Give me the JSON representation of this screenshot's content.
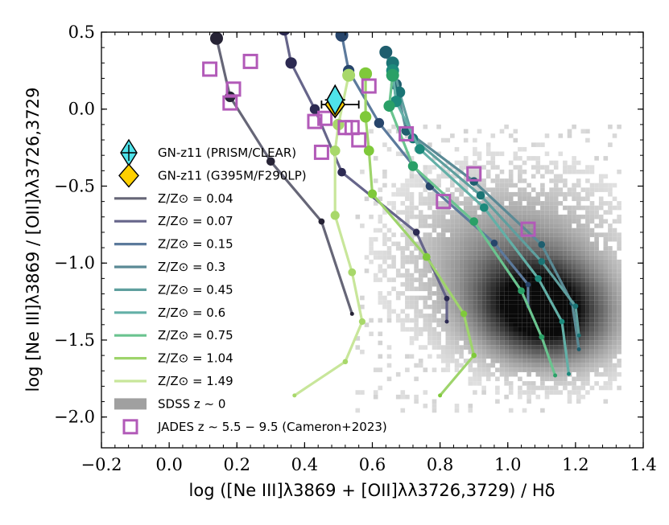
{
  "chart_data": {
    "type": "scatter",
    "xlabel": "log ([Ne III]λ3869 + [OII]λλ3726,3729) / Hδ",
    "ylabel": "log [Ne III]λ3869 / [OII]λλ3726,3729",
    "xlim": [
      -0.2,
      1.4
    ],
    "ylim": [
      -2.2,
      0.5
    ],
    "xticks": [
      -0.2,
      0.0,
      0.2,
      0.4,
      0.6,
      0.8,
      1.0,
      1.2,
      1.4
    ],
    "xtick_labels": [
      "−0.2",
      "0.0",
      "0.2",
      "0.4",
      "0.6",
      "0.8",
      "1.0",
      "1.2",
      "1.4"
    ],
    "yticks": [
      0.5,
      0.0,
      -0.5,
      -1.0,
      -1.5,
      -2.0
    ],
    "ytick_labels": [
      "0.5",
      "0.0",
      "−0.5",
      "−1.0",
      "−1.5",
      "−2.0"
    ],
    "legend_position": "left",
    "gnz11": [
      {
        "name": "GN-z11 (PRISM/CLEAR)",
        "x": 0.49,
        "y": 0.06,
        "xerr": 0.03,
        "yerr": 0.05,
        "marker": "thin_diamond",
        "color": "#4fe3ea"
      },
      {
        "name": "GN-z11 (G395M/F290LP)",
        "x": 0.49,
        "y": 0.03,
        "xerr_low": 0.04,
        "xerr_high": 0.07,
        "marker": "diamond",
        "color": "#ffd000"
      }
    ],
    "model_tracks": [
      {
        "label": "Z/Z⊙ = 0.04",
        "color": "#262335",
        "line_color": "#666677",
        "points": [
          [
            0.14,
            0.46
          ],
          [
            0.18,
            0.08
          ],
          [
            0.3,
            -0.34
          ],
          [
            0.45,
            -0.73
          ],
          [
            0.54,
            -1.33
          ]
        ]
      },
      {
        "label": "Z/Z⊙ = 0.07",
        "color": "#2c2a52",
        "line_color": "#66658a",
        "points": [
          [
            0.34,
            0.52
          ],
          [
            0.36,
            0.3
          ],
          [
            0.43,
            0.0
          ],
          [
            0.51,
            -0.41
          ],
          [
            0.73,
            -0.8
          ],
          [
            0.82,
            -1.23
          ],
          [
            0.82,
            -1.38
          ]
        ]
      },
      {
        "label": "Z/Z⊙ = 0.15",
        "color": "#27456b",
        "line_color": "#5c7a9c",
        "points": [
          [
            0.51,
            0.48
          ],
          [
            0.53,
            0.25
          ],
          [
            0.62,
            -0.09
          ],
          [
            0.77,
            -0.5
          ],
          [
            0.96,
            -0.87
          ],
          [
            1.06,
            -1.14
          ],
          [
            1.06,
            -1.28
          ]
        ]
      },
      {
        "label": "Z/Z⊙ = 0.3",
        "color": "#1f5e6e",
        "line_color": "#5a8a95",
        "points": [
          [
            0.64,
            0.37
          ],
          [
            0.67,
            0.16
          ],
          [
            0.7,
            -0.14
          ],
          [
            0.9,
            -0.47
          ],
          [
            1.1,
            -0.88
          ],
          [
            1.19,
            -1.26
          ],
          [
            1.21,
            -1.56
          ]
        ]
      },
      {
        "label": "Z/Z⊙ = 0.45",
        "color": "#1b7475",
        "line_color": "#5f9f9e",
        "points": [
          [
            0.66,
            0.3
          ],
          [
            0.68,
            0.11
          ],
          [
            0.72,
            -0.19
          ],
          [
            0.92,
            -0.56
          ],
          [
            1.1,
            -0.99
          ],
          [
            1.2,
            -1.28
          ],
          [
            1.21,
            -1.47
          ]
        ]
      },
      {
        "label": "Z/Z⊙ = 0.6",
        "color": "#1c8a7c",
        "line_color": "#63b0a7",
        "points": [
          [
            0.66,
            0.25
          ],
          [
            0.67,
            0.05
          ],
          [
            0.74,
            -0.26
          ],
          [
            0.93,
            -0.64
          ],
          [
            1.09,
            -1.1
          ],
          [
            1.16,
            -1.38
          ],
          [
            1.18,
            -1.72
          ]
        ]
      },
      {
        "label": "Z/Z⊙ = 0.75",
        "color": "#2aa067",
        "line_color": "#6ac48f",
        "points": [
          [
            0.66,
            0.22
          ],
          [
            0.65,
            0.02
          ],
          [
            0.72,
            -0.37
          ],
          [
            0.9,
            -0.73
          ],
          [
            1.04,
            -1.18
          ],
          [
            1.1,
            -1.48
          ],
          [
            1.14,
            -1.73
          ]
        ]
      },
      {
        "label": "Z/Z⊙ = 1.04",
        "color": "#7fc93a",
        "line_color": "#9ed46b",
        "points": [
          [
            0.58,
            0.23
          ],
          [
            0.58,
            -0.05
          ],
          [
            0.59,
            -0.27
          ],
          [
            0.6,
            -0.55
          ],
          [
            0.76,
            -0.96
          ],
          [
            0.87,
            -1.33
          ],
          [
            0.9,
            -1.6
          ],
          [
            0.8,
            -1.86
          ]
        ]
      },
      {
        "label": "Z/Z⊙ = 1.49",
        "color": "#a8d86a",
        "line_color": "#c8e69a",
        "points": [
          [
            0.53,
            0.22
          ],
          [
            0.5,
            -0.1
          ],
          [
            0.49,
            -0.27
          ],
          [
            0.49,
            -0.69
          ],
          [
            0.54,
            -1.06
          ],
          [
            0.57,
            -1.38
          ],
          [
            0.52,
            -1.64
          ],
          [
            0.37,
            -1.86
          ]
        ]
      }
    ],
    "jades": {
      "label": "JADES z ∼ 5.5 − 9.5 (Cameron+2023)",
      "color": "#b25ab8",
      "x": [
        0.12,
        0.24,
        0.19,
        0.18,
        0.59,
        0.43,
        0.46,
        0.52,
        0.54,
        0.56,
        0.45,
        0.7,
        0.9,
        0.81,
        1.06
      ],
      "y": [
        0.26,
        0.31,
        0.13,
        0.04,
        0.15,
        -0.08,
        -0.06,
        -0.12,
        -0.12,
        -0.2,
        -0.28,
        -0.16,
        -0.42,
        -0.6,
        -0.78
      ]
    },
    "sdss": {
      "label": "SDSS z ∼ 0",
      "color": "#888888",
      "description_peak": [
        1.1,
        -1.3
      ]
    },
    "legend": [
      {
        "key": "gnz11_prism",
        "label": "GN-z11 (PRISM/CLEAR)"
      },
      {
        "key": "gnz11_g395m",
        "label": "GN-z11 (G395M/F290LP)"
      },
      {
        "key": "track0",
        "label": "Z/Z⊙ = 0.04"
      },
      {
        "key": "track1",
        "label": "Z/Z⊙ = 0.07"
      },
      {
        "key": "track2",
        "label": "Z/Z⊙ = 0.15"
      },
      {
        "key": "track3",
        "label": "Z/Z⊙ = 0.3"
      },
      {
        "key": "track4",
        "label": "Z/Z⊙ = 0.45"
      },
      {
        "key": "track5",
        "label": "Z/Z⊙ = 0.6"
      },
      {
        "key": "track6",
        "label": "Z/Z⊙ = 0.75"
      },
      {
        "key": "track7",
        "label": "Z/Z⊙ = 1.04"
      },
      {
        "key": "track8",
        "label": "Z/Z⊙ = 1.49"
      },
      {
        "key": "sdss",
        "label": "SDSS z ∼ 0"
      },
      {
        "key": "jades",
        "label": "JADES z ∼ 5.5 − 9.5 (Cameron+2023)"
      }
    ]
  }
}
